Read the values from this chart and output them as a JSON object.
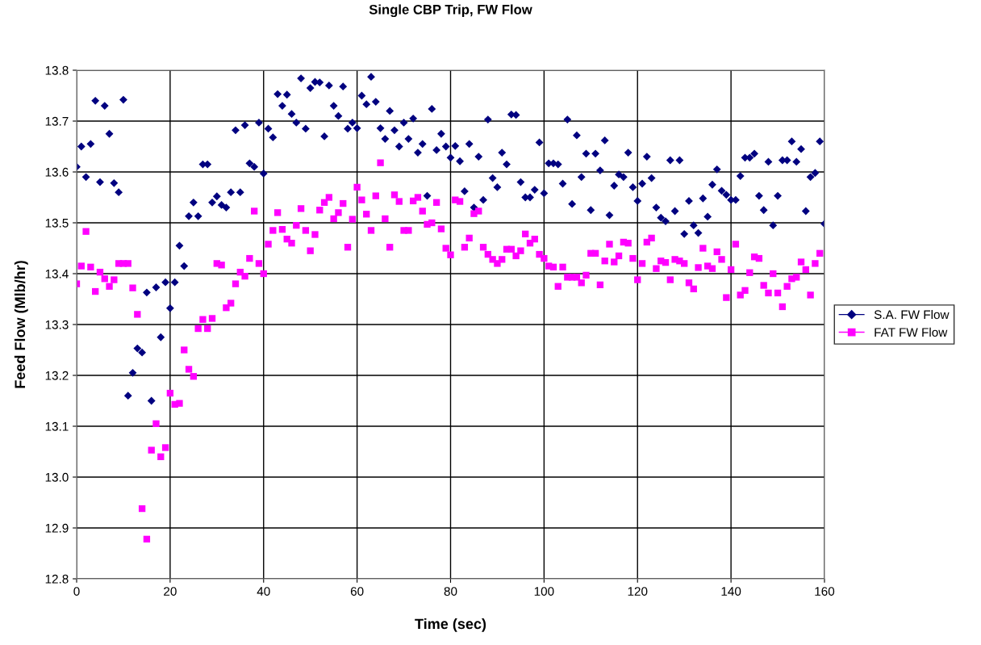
{
  "chart_data": {
    "type": "scatter",
    "title": "Single CBP Trip, FW Flow",
    "xlabel": "Time (sec)",
    "ylabel": "Feed Flow (Mlb/hr)",
    "x": [
      0,
      1,
      2,
      3,
      4,
      5,
      6,
      7,
      8,
      9,
      10,
      11,
      12,
      13,
      14,
      15,
      16,
      17,
      18,
      19,
      20,
      21,
      22,
      23,
      24,
      25,
      26,
      27,
      28,
      29,
      30,
      31,
      32,
      33,
      34,
      35,
      36,
      37,
      38,
      39,
      40,
      41,
      42,
      43,
      44,
      45,
      46,
      47,
      48,
      49,
      50,
      51,
      52,
      53,
      54,
      55,
      56,
      57,
      58,
      59,
      60,
      61,
      62,
      63,
      64,
      65,
      66,
      67,
      68,
      69,
      70,
      71,
      72,
      73,
      74,
      75,
      76,
      77,
      78,
      79,
      80,
      81,
      82,
      83,
      84,
      85,
      86,
      87,
      88,
      89,
      90,
      91,
      92,
      93,
      94,
      95,
      96,
      97,
      98,
      99,
      100,
      101,
      102,
      103,
      104,
      105,
      106,
      107,
      108,
      109,
      110,
      111,
      112,
      113,
      114,
      115,
      116,
      117,
      118,
      119,
      120,
      121,
      122,
      123,
      124,
      125,
      126,
      127,
      128,
      129,
      130,
      131,
      132,
      133,
      134,
      135,
      136,
      137,
      138,
      139,
      140,
      141,
      142,
      143,
      144,
      145,
      146,
      147,
      148,
      149,
      150,
      151,
      152,
      153,
      154,
      155,
      156,
      157,
      158,
      159,
      160
    ],
    "series": [
      {
        "name": "S.A. FW Flow",
        "color": "#000080",
        "marker": "diamond",
        "values": [
          13.61,
          13.65,
          13.59,
          13.655,
          13.74,
          13.58,
          13.73,
          13.675,
          13.578,
          13.56,
          13.742,
          13.16,
          13.205,
          13.253,
          13.245,
          13.363,
          13.15,
          13.373,
          13.275,
          13.383,
          13.332,
          13.383,
          13.455,
          13.415,
          13.513,
          13.54,
          13.513,
          13.615,
          13.615,
          13.54,
          13.552,
          13.535,
          13.53,
          13.56,
          13.682,
          13.56,
          13.692,
          13.617,
          13.61,
          13.697,
          13.597,
          13.685,
          13.668,
          13.753,
          13.73,
          13.752,
          13.714,
          13.697,
          13.784,
          13.685,
          13.765,
          13.777,
          13.776,
          13.67,
          13.77,
          13.73,
          13.71,
          13.768,
          13.685,
          13.697,
          13.686,
          13.75,
          13.733,
          13.787,
          13.738,
          13.686,
          13.665,
          13.72,
          13.682,
          13.65,
          13.697,
          13.665,
          13.705,
          13.638,
          13.655,
          13.553,
          13.724,
          13.643,
          13.675,
          13.65,
          13.628,
          13.651,
          13.621,
          13.562,
          13.655,
          13.53,
          13.63,
          13.545,
          13.703,
          13.588,
          13.57,
          13.638,
          13.615,
          13.713,
          13.712,
          13.58,
          13.55,
          13.55,
          13.565,
          13.658,
          13.558,
          13.617,
          13.617,
          13.615,
          13.577,
          13.703,
          13.537,
          13.672,
          13.59,
          13.636,
          13.525,
          13.636,
          13.603,
          13.662,
          13.515,
          13.573,
          13.595,
          13.59,
          13.638,
          13.57,
          13.543,
          13.577,
          13.63,
          13.588,
          13.53,
          13.51,
          13.503,
          13.623,
          13.523,
          13.623,
          13.478,
          13.543,
          13.495,
          13.48,
          13.548,
          13.512,
          13.575,
          13.605,
          13.563,
          13.555,
          13.545,
          13.545,
          13.592,
          13.628,
          13.628,
          13.636,
          13.553,
          13.525,
          13.62,
          13.495,
          13.553,
          13.623,
          13.623,
          13.66,
          13.62,
          13.645,
          13.523,
          13.59,
          13.598,
          13.66,
          13.498
        ]
      },
      {
        "name": "FAT FW Flow",
        "color": "#ff00ff",
        "marker": "square",
        "x": [
          0,
          1,
          2,
          3,
          4,
          5,
          6,
          7,
          8,
          9,
          10,
          11,
          12,
          13,
          14,
          15,
          16,
          17,
          18,
          19,
          20,
          21,
          22,
          23,
          24,
          25,
          26,
          27,
          28,
          29,
          30,
          31,
          32,
          33,
          34,
          35,
          36,
          37,
          38,
          39,
          40,
          41,
          42,
          43,
          44,
          45,
          46,
          47,
          48,
          49,
          50,
          51,
          52,
          53,
          54,
          55,
          56,
          57,
          58,
          59,
          60,
          61,
          62,
          63,
          64,
          65,
          66,
          67,
          68,
          69,
          70,
          71,
          72,
          73,
          74,
          75,
          76,
          77,
          78,
          79,
          80,
          81,
          82,
          83,
          84,
          85,
          86,
          87,
          88,
          89,
          90,
          91,
          92,
          93,
          94,
          95,
          96,
          97,
          98,
          99,
          100,
          101,
          102,
          103,
          104,
          105,
          106,
          107,
          108,
          109,
          110,
          111,
          112,
          113,
          114,
          115,
          116,
          117,
          118,
          119,
          120,
          121,
          122,
          123,
          124,
          125,
          126,
          127,
          128,
          129,
          130,
          131,
          132,
          133,
          134,
          135,
          136,
          137,
          138,
          139,
          140,
          141,
          142,
          143,
          144,
          145,
          146,
          147,
          148,
          149,
          150,
          151,
          152,
          153,
          154,
          155,
          156,
          157,
          158,
          159
        ],
        "values": [
          13.38,
          13.415,
          13.483,
          13.413,
          13.365,
          13.403,
          13.39,
          13.375,
          13.388,
          13.42,
          13.42,
          13.42,
          13.372,
          13.32,
          12.938,
          12.878,
          13.053,
          13.105,
          13.04,
          13.058,
          13.165,
          13.143,
          13.145,
          13.25,
          13.212,
          13.198,
          13.292,
          13.31,
          13.292,
          13.312,
          13.42,
          13.417,
          13.333,
          13.342,
          13.38,
          13.403,
          13.395,
          13.43,
          13.523,
          13.42,
          13.4,
          13.458,
          13.485,
          13.52,
          13.487,
          13.468,
          13.46,
          13.495,
          13.528,
          13.485,
          13.445,
          13.477,
          13.525,
          13.54,
          13.55,
          13.508,
          13.52,
          13.538,
          13.452,
          13.507,
          13.57,
          13.545,
          13.517,
          13.485,
          13.553,
          13.618,
          13.508,
          13.452,
          13.555,
          13.542,
          13.485,
          13.485,
          13.543,
          13.55,
          13.523,
          13.497,
          13.5,
          13.54,
          13.488,
          13.45,
          13.437,
          13.545,
          13.542,
          13.452,
          13.47,
          13.518,
          13.523,
          13.452,
          13.438,
          13.428,
          13.42,
          13.428,
          13.448,
          13.448,
          13.435,
          13.445,
          13.478,
          13.46,
          13.468,
          13.438,
          13.43,
          13.415,
          13.413,
          13.375,
          13.413,
          13.393,
          13.393,
          13.393,
          13.382,
          13.397,
          13.44,
          13.44,
          13.378,
          13.425,
          13.458,
          13.423,
          13.435,
          13.462,
          13.46,
          13.43,
          13.388,
          13.42,
          13.462,
          13.47,
          13.41,
          13.425,
          13.422,
          13.388,
          13.428,
          13.425,
          13.42,
          13.382,
          13.37,
          13.412,
          13.45,
          13.415,
          13.41,
          13.443,
          13.428,
          13.353,
          13.408,
          13.458,
          13.358,
          13.367,
          13.402,
          13.433,
          13.43,
          13.377,
          13.362,
          13.4,
          13.362,
          13.335,
          13.375,
          13.39,
          13.393,
          13.423,
          13.408,
          13.358,
          13.42,
          13.44
        ]
      }
    ],
    "xlim": [
      0,
      160
    ],
    "xticks": [
      0,
      20,
      40,
      60,
      80,
      100,
      120,
      140,
      160
    ],
    "ylim": [
      12.8,
      13.8
    ],
    "yticks": [
      {
        "value": 12.8,
        "label": "12.8"
      },
      {
        "value": 12.9,
        "label": "12.9"
      },
      {
        "value": 13.0,
        "label": "13.0"
      },
      {
        "value": 13.1,
        "label": "13.1"
      },
      {
        "value": 13.2,
        "label": "13.2"
      },
      {
        "value": 13.3,
        "label": "13.3"
      },
      {
        "value": 13.4,
        "label": "13.4"
      },
      {
        "value": 13.5,
        "label": "13.5"
      },
      {
        "value": 13.6,
        "label": "13.6"
      },
      {
        "value": 13.7,
        "label": "13.7"
      },
      {
        "value": 13.8,
        "label": "13.8"
      }
    ],
    "grid": true,
    "legend": "right"
  }
}
